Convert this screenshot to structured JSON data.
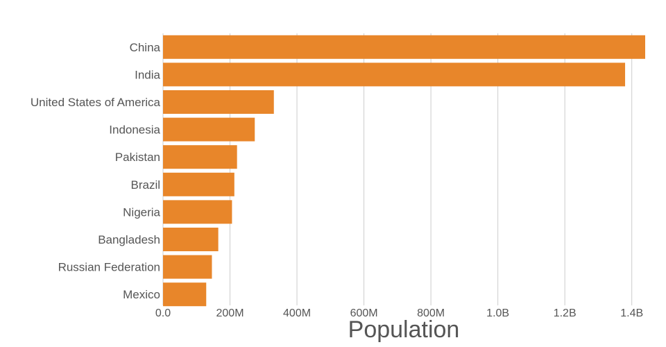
{
  "chart_data": {
    "type": "bar",
    "orientation": "horizontal",
    "categories": [
      "China",
      "India",
      "United States of America",
      "Indonesia",
      "Pakistan",
      "Brazil",
      "Nigeria",
      "Bangladesh",
      "Russian Federation",
      "Mexico"
    ],
    "values": [
      1440000000,
      1380000000,
      331000000,
      274000000,
      221000000,
      213000000,
      206000000,
      165000000,
      146000000,
      129000000
    ],
    "xlabel": "Population",
    "ylabel": "",
    "xlim": [
      0,
      1440000000
    ],
    "x_ticks": [
      0,
      200000000,
      400000000,
      600000000,
      800000000,
      1000000000,
      1200000000,
      1400000000
    ],
    "x_tick_labels": [
      "0.0",
      "200M",
      "400M",
      "600M",
      "800M",
      "1.0B",
      "1.2B",
      "1.4B"
    ],
    "grid": true,
    "legend": "none",
    "bar_color": "#e8862a"
  }
}
